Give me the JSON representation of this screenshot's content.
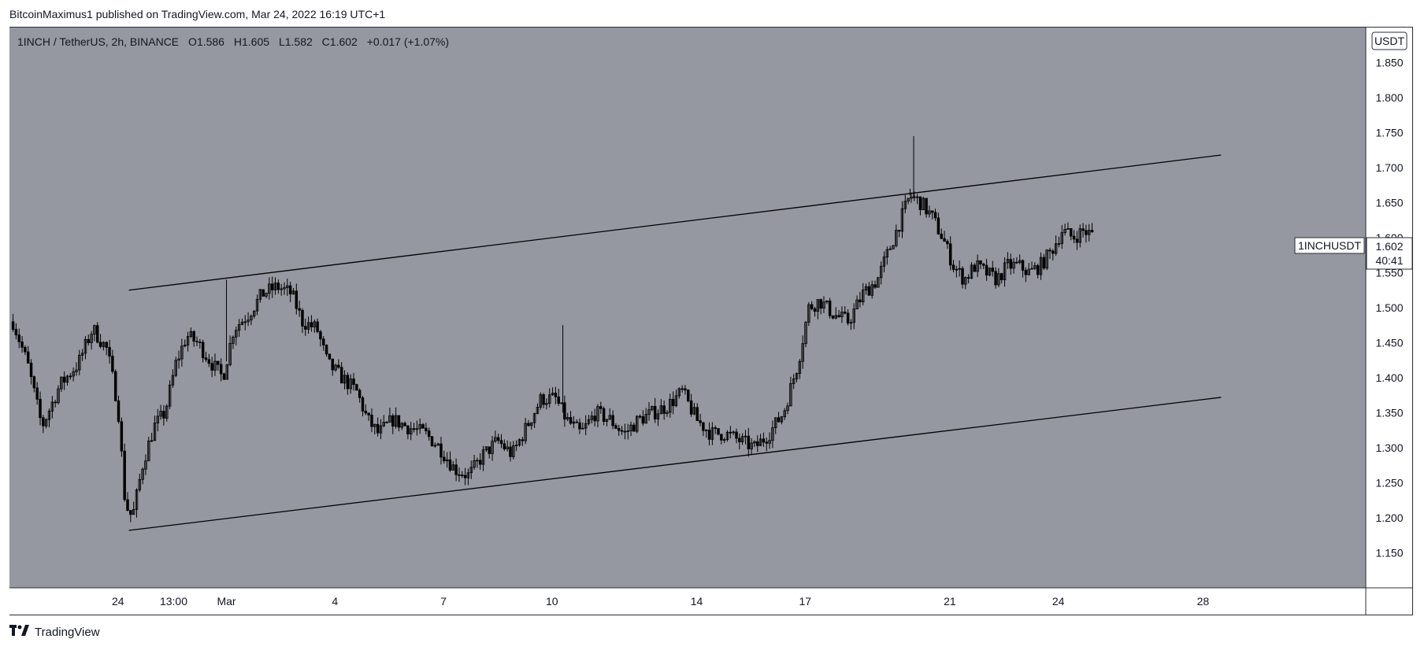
{
  "header": {
    "published_line": "BitcoinMaximus1 published on TradingView.com, Mar 24, 2022 16:19 UTC+1"
  },
  "legend": {
    "symbol": "1INCH / TetherUS, 2h, BINANCE",
    "o_label": "O",
    "o": "1.586",
    "h_label": "H",
    "h": "1.605",
    "l_label": "L",
    "l": "1.582",
    "c_label": "C",
    "c": "1.602",
    "change": "+0.017 (+1.07%)"
  },
  "currency_badge": "USDT",
  "price_tag": {
    "symbol": "1INCHUSDT",
    "price": "1.602",
    "countdown": "40:41"
  },
  "footer": {
    "brand": "TradingView",
    "logo": "tradingview-logo-icon"
  },
  "colors": {
    "background_plot": "#9598a1",
    "candle": "#000000",
    "wick": "#000000",
    "channel_line": "#000000",
    "grid": "#a6a9b0"
  },
  "chart_data": {
    "type": "candlestick",
    "title": "",
    "xlabel": "",
    "ylabel": "",
    "ylim": [
      1.1,
      1.9
    ],
    "y_ticks": [
      1.15,
      1.2,
      1.25,
      1.3,
      1.35,
      1.4,
      1.45,
      1.5,
      1.55,
      1.6,
      1.65,
      1.7,
      1.75,
      1.8,
      1.85
    ],
    "y_tick_labels": [
      "1.150",
      "1.200",
      "1.250",
      "1.300",
      "1.350",
      "1.400",
      "1.450",
      "1.500",
      "1.550",
      "1.600",
      "1.650",
      "1.700",
      "1.750",
      "1.800",
      "1.850"
    ],
    "x_tick_labels": [
      {
        "label": "24",
        "day": 3
      },
      {
        "label": "13:00",
        "day": 4.54
      },
      {
        "label": "Mar",
        "day": 6
      },
      {
        "label": "4",
        "day": 9
      },
      {
        "label": "7",
        "day": 12
      },
      {
        "label": "10",
        "day": 15
      },
      {
        "label": "14",
        "day": 19
      },
      {
        "label": "17",
        "day": 22
      },
      {
        "label": "21",
        "day": 26
      },
      {
        "label": "24",
        "day": 29
      },
      {
        "label": "28",
        "day": 33
      }
    ],
    "price_path": [
      [
        0.1,
        1.48
      ],
      [
        0.5,
        1.42
      ],
      [
        0.9,
        1.33
      ],
      [
        1.4,
        1.39
      ],
      [
        1.9,
        1.42
      ],
      [
        2.3,
        1.47
      ],
      [
        2.7,
        1.44
      ],
      [
        3.0,
        1.36
      ],
      [
        3.2,
        1.22
      ],
      [
        3.4,
        1.2
      ],
      [
        3.7,
        1.28
      ],
      [
        4.0,
        1.33
      ],
      [
        4.3,
        1.35
      ],
      [
        4.6,
        1.42
      ],
      [
        4.9,
        1.46
      ],
      [
        5.2,
        1.45
      ],
      [
        5.6,
        1.42
      ],
      [
        5.9,
        1.4
      ],
      [
        6.2,
        1.47
      ],
      [
        6.6,
        1.49
      ],
      [
        7.0,
        1.52
      ],
      [
        7.4,
        1.53
      ],
      [
        7.8,
        1.52
      ],
      [
        8.1,
        1.48
      ],
      [
        8.5,
        1.47
      ],
      [
        8.8,
        1.42
      ],
      [
        9.2,
        1.4
      ],
      [
        9.6,
        1.38
      ],
      [
        9.9,
        1.34
      ],
      [
        10.2,
        1.32
      ],
      [
        10.6,
        1.34
      ],
      [
        11.0,
        1.33
      ],
      [
        11.5,
        1.32
      ],
      [
        11.9,
        1.3
      ],
      [
        12.3,
        1.27
      ],
      [
        12.7,
        1.26
      ],
      [
        13.1,
        1.29
      ],
      [
        13.5,
        1.31
      ],
      [
        13.9,
        1.29
      ],
      [
        14.3,
        1.33
      ],
      [
        14.7,
        1.37
      ],
      [
        15.1,
        1.37
      ],
      [
        15.4,
        1.34
      ],
      [
        15.8,
        1.32
      ],
      [
        16.2,
        1.35
      ],
      [
        16.6,
        1.34
      ],
      [
        17.0,
        1.32
      ],
      [
        17.4,
        1.34
      ],
      [
        17.8,
        1.35
      ],
      [
        18.2,
        1.36
      ],
      [
        18.6,
        1.38
      ],
      [
        19.0,
        1.34
      ],
      [
        19.4,
        1.32
      ],
      [
        19.8,
        1.32
      ],
      [
        20.2,
        1.31
      ],
      [
        20.6,
        1.3
      ],
      [
        21.0,
        1.32
      ],
      [
        21.4,
        1.35
      ],
      [
        21.8,
        1.42
      ],
      [
        22.1,
        1.5
      ],
      [
        22.4,
        1.51
      ],
      [
        22.8,
        1.49
      ],
      [
        23.2,
        1.48
      ],
      [
        23.6,
        1.52
      ],
      [
        24.0,
        1.54
      ],
      [
        24.3,
        1.58
      ],
      [
        24.6,
        1.62
      ],
      [
        24.9,
        1.66
      ],
      [
        25.2,
        1.65
      ],
      [
        25.5,
        1.63
      ],
      [
        25.8,
        1.6
      ],
      [
        26.1,
        1.56
      ],
      [
        26.4,
        1.54
      ],
      [
        26.7,
        1.56
      ],
      [
        27.0,
        1.55
      ],
      [
        27.3,
        1.54
      ],
      [
        27.6,
        1.56
      ],
      [
        27.9,
        1.56
      ],
      [
        28.2,
        1.55
      ],
      [
        28.5,
        1.56
      ],
      [
        28.8,
        1.58
      ],
      [
        29.1,
        1.61
      ],
      [
        29.4,
        1.6
      ],
      [
        29.7,
        1.61
      ],
      [
        30.0,
        1.602
      ]
    ],
    "spike_highs": [
      [
        25.0,
        1.745
      ],
      [
        15.3,
        1.475
      ],
      [
        6.0,
        1.54
      ],
      [
        24.9,
        1.67
      ]
    ],
    "channel_upper": [
      [
        3.3,
        1.525
      ],
      [
        33.5,
        1.718
      ]
    ],
    "channel_lower": [
      [
        3.3,
        1.182
      ],
      [
        33.5,
        1.372
      ]
    ],
    "last_price": 1.602
  }
}
